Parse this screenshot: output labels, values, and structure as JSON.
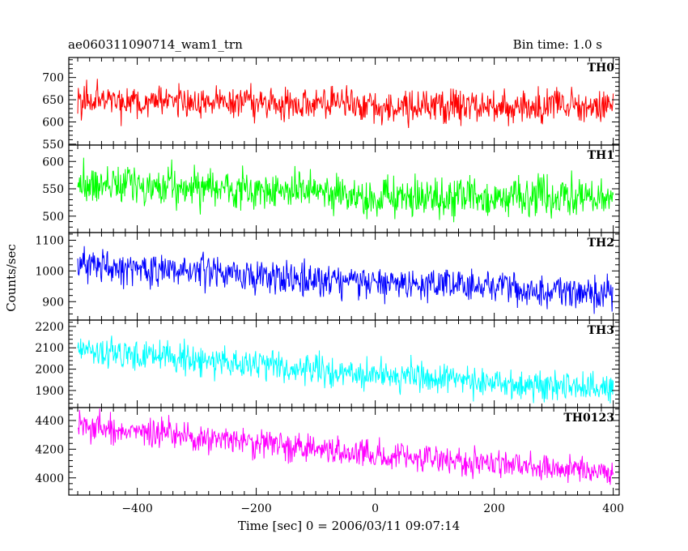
{
  "chart_data": {
    "type": "line",
    "title_left": "ae060311090714_wam1_trn",
    "title_right": "Bin time: 1.0 s",
    "xlabel": "Time [sec] 0 = 2006/03/11 09:07:14",
    "ylabel": "Counts/sec",
    "xlim": [
      -515,
      410
    ],
    "x_ticks": [
      -400,
      -200,
      0,
      200,
      400
    ],
    "data_x_range": [
      -500,
      400
    ],
    "panels": [
      {
        "name": "TH0",
        "color": "#ff0000",
        "ylim": [
          548,
          745
        ],
        "y_ticks": [
          550,
          600,
          650,
          700
        ],
        "trend": [
          [
            -500,
            650
          ],
          [
            -100,
            640
          ],
          [
            0,
            635
          ],
          [
            400,
            635
          ]
        ],
        "noise": 28
      },
      {
        "name": "TH1",
        "color": "#00ff00",
        "ylim": [
          470,
          630
        ],
        "y_ticks": [
          500,
          550,
          600
        ],
        "trend": [
          [
            -500,
            560
          ],
          [
            -100,
            545
          ],
          [
            0,
            530
          ],
          [
            400,
            535
          ]
        ],
        "noise": 25
      },
      {
        "name": "TH2",
        "color": "#0000ff",
        "ylim": [
          840,
          1125
        ],
        "y_ticks": [
          900,
          1000,
          1100
        ],
        "trend": [
          [
            -500,
            1020
          ],
          [
            -200,
            985
          ],
          [
            0,
            965
          ],
          [
            400,
            925
          ]
        ],
        "noise": 38
      },
      {
        "name": "TH3",
        "color": "#00ffff",
        "ylim": [
          1820,
          2230
        ],
        "y_ticks": [
          1900,
          2000,
          2100,
          2200
        ],
        "trend": [
          [
            -500,
            2090
          ],
          [
            -200,
            2020
          ],
          [
            0,
            1975
          ],
          [
            400,
            1905
          ]
        ],
        "noise": 50
      },
      {
        "name": "TH0123",
        "color": "#ff00ff",
        "ylim": [
          3880,
          4490
        ],
        "y_ticks": [
          4000,
          4200,
          4400
        ],
        "trend": [
          [
            -500,
            4360
          ],
          [
            -200,
            4240
          ],
          [
            0,
            4160
          ],
          [
            400,
            4040
          ]
        ],
        "noise": 70
      }
    ]
  }
}
